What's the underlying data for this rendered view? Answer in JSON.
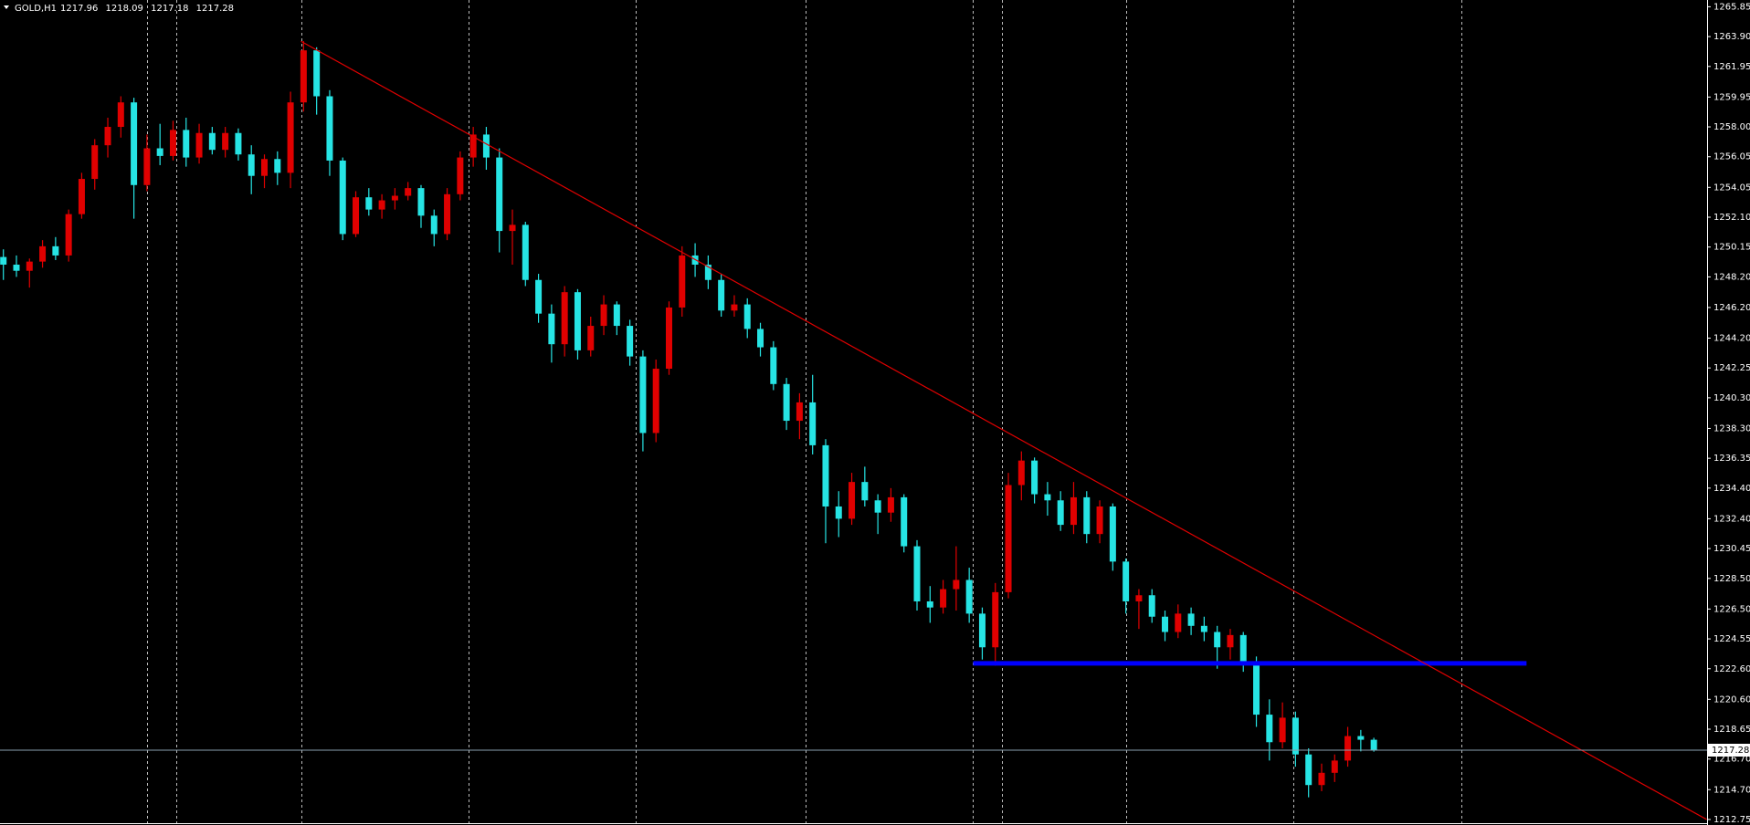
{
  "chart_data": {
    "type": "candlestick",
    "symbol": "GOLD,H1",
    "bull_color": "#e00000",
    "bear_color": "#26e4e4",
    "ylim": [
      1212.39,
      1266.29
    ],
    "yticks": [
      1265.85,
      {
        "value": 1263.9,
        "label": "1263.90"
      },
      1261.95,
      1259.95,
      {
        "value": 1258,
        "label": "1258.00"
      },
      1256.05,
      1254.05,
      {
        "value": 1252.1,
        "label": "1252.10"
      },
      1250.15,
      {
        "value": 1248.2,
        "label": "1248.20"
      },
      {
        "value": 1246.2,
        "label": "1246.20"
      },
      {
        "value": 1244.2,
        "label": "1244.20"
      },
      1242.25,
      {
        "value": 1240.3,
        "label": "1240.30"
      },
      {
        "value": 1238.3,
        "label": "1238.30"
      },
      1236.35,
      {
        "value": 1234.4,
        "label": "1234.40"
      },
      {
        "value": 1232.4,
        "label": "1232.40"
      },
      1230.45,
      {
        "value": 1228.5,
        "label": "1228.50"
      },
      {
        "value": 1226.5,
        "label": "1226.50"
      },
      1224.55,
      {
        "value": 1222.6,
        "label": "1222.60"
      },
      {
        "value": 1220.6,
        "label": "1220.60"
      },
      1218.65,
      {
        "value": 1216.7,
        "label": "1216.70"
      },
      {
        "value": 1214.7,
        "label": "1214.70"
      },
      1212.75
    ],
    "candles": [
      [
        1249.5,
        1250.0,
        1248.0,
        1249.0
      ],
      [
        1249.0,
        1249.6,
        1248.2,
        1248.6
      ],
      [
        1248.6,
        1249.4,
        1247.5,
        1249.2
      ],
      [
        1249.2,
        1250.6,
        1248.8,
        1250.2
      ],
      [
        1250.2,
        1250.8,
        1249.3,
        1249.6
      ],
      [
        1249.6,
        1252.6,
        1249.2,
        1252.3
      ],
      [
        1252.3,
        1255.0,
        1252.0,
        1254.6
      ],
      [
        1254.6,
        1257.2,
        1253.9,
        1256.8
      ],
      [
        1256.8,
        1258.6,
        1256.0,
        1258.0
      ],
      [
        1258.0,
        1260.0,
        1257.3,
        1259.6
      ],
      [
        1259.6,
        1259.9,
        1252.0,
        1254.2
      ],
      [
        1254.2,
        1257.5,
        1253.8,
        1256.6
      ],
      [
        1256.6,
        1258.2,
        1255.5,
        1256.1
      ],
      [
        1256.1,
        1258.4,
        1255.8,
        1257.8
      ],
      [
        1257.8,
        1258.6,
        1255.4,
        1256.0
      ],
      [
        1256.0,
        1258.2,
        1255.6,
        1257.6
      ],
      [
        1257.6,
        1258.0,
        1256.2,
        1256.5
      ],
      [
        1256.5,
        1258.0,
        1256.0,
        1257.6
      ],
      [
        1257.6,
        1257.9,
        1255.8,
        1256.2
      ],
      [
        1256.2,
        1256.8,
        1253.6,
        1254.8
      ],
      [
        1254.8,
        1256.2,
        1254.0,
        1255.9
      ],
      [
        1255.9,
        1256.4,
        1254.2,
        1255.0
      ],
      [
        1255.0,
        1260.3,
        1254.0,
        1259.6
      ],
      [
        1259.6,
        1263.6,
        1259.0,
        1263.0
      ],
      [
        1263.0,
        1263.2,
        1258.8,
        1260.0
      ],
      [
        1260.0,
        1260.4,
        1254.8,
        1255.8
      ],
      [
        1255.8,
        1256.0,
        1250.6,
        1251.0
      ],
      [
        1251.0,
        1253.8,
        1250.8,
        1253.4
      ],
      [
        1253.4,
        1254.0,
        1252.2,
        1252.6
      ],
      [
        1252.6,
        1253.6,
        1252.0,
        1253.2
      ],
      [
        1253.2,
        1254.0,
        1252.6,
        1253.5
      ],
      [
        1253.5,
        1254.4,
        1253.2,
        1254.0
      ],
      [
        1254.0,
        1254.2,
        1251.4,
        1252.2
      ],
      [
        1252.2,
        1252.6,
        1250.2,
        1251.0
      ],
      [
        1251.0,
        1254.0,
        1250.6,
        1253.6
      ],
      [
        1253.6,
        1256.4,
        1253.2,
        1256.0
      ],
      [
        1256.0,
        1258.0,
        1255.4,
        1257.5
      ],
      [
        1257.5,
        1258.0,
        1255.2,
        1256.0
      ],
      [
        1256.0,
        1256.6,
        1249.8,
        1251.2
      ],
      [
        1251.2,
        1252.6,
        1249.0,
        1251.6
      ],
      [
        1251.6,
        1251.8,
        1247.6,
        1248.0
      ],
      [
        1248.0,
        1248.4,
        1245.2,
        1245.8
      ],
      [
        1245.8,
        1246.4,
        1242.6,
        1243.8
      ],
      [
        1243.8,
        1247.6,
        1243.0,
        1247.2
      ],
      [
        1247.2,
        1247.4,
        1242.8,
        1243.4
      ],
      [
        1243.4,
        1245.6,
        1243.0,
        1245.0
      ],
      [
        1245.0,
        1247.0,
        1244.4,
        1246.4
      ],
      [
        1246.4,
        1246.6,
        1244.4,
        1245.0
      ],
      [
        1245.0,
        1245.4,
        1242.4,
        1243.0
      ],
      [
        1243.0,
        1243.4,
        1236.8,
        1238.0
      ],
      [
        1238.0,
        1242.8,
        1237.4,
        1242.2
      ],
      [
        1242.2,
        1246.6,
        1241.8,
        1246.2
      ],
      [
        1246.2,
        1250.2,
        1245.6,
        1249.6
      ],
      [
        1249.6,
        1250.4,
        1248.2,
        1249.0
      ],
      [
        1249.0,
        1249.6,
        1247.4,
        1248.0
      ],
      [
        1248.0,
        1248.4,
        1245.6,
        1246.0
      ],
      [
        1246.0,
        1247.0,
        1245.6,
        1246.4
      ],
      [
        1246.4,
        1246.8,
        1244.2,
        1244.8
      ],
      [
        1244.8,
        1245.2,
        1243.0,
        1243.6
      ],
      [
        1243.6,
        1244.0,
        1240.8,
        1241.2
      ],
      [
        1241.2,
        1241.6,
        1238.2,
        1238.8
      ],
      [
        1238.8,
        1240.6,
        1237.6,
        1240.0
      ],
      [
        1240.0,
        1241.8,
        1236.6,
        1237.2
      ],
      [
        1237.2,
        1237.6,
        1230.8,
        1233.2
      ],
      [
        1233.2,
        1234.2,
        1231.2,
        1232.4
      ],
      [
        1232.4,
        1235.4,
        1232.0,
        1234.8
      ],
      [
        1234.8,
        1235.8,
        1233.2,
        1233.6
      ],
      [
        1233.6,
        1234.0,
        1231.4,
        1232.8
      ],
      [
        1232.8,
        1234.4,
        1232.2,
        1233.8
      ],
      [
        1233.8,
        1234.0,
        1230.2,
        1230.6
      ],
      [
        1230.6,
        1231.0,
        1226.4,
        1227.0
      ],
      [
        1227.0,
        1228.0,
        1225.6,
        1226.6
      ],
      [
        1226.6,
        1228.4,
        1226.2,
        1227.8
      ],
      [
        1227.8,
        1230.6,
        1226.4,
        1228.4
      ],
      [
        1228.4,
        1229.2,
        1225.6,
        1226.2
      ],
      [
        1226.2,
        1226.6,
        1223.2,
        1224.0
      ],
      [
        1224.0,
        1228.2,
        1222.8,
        1227.6
      ],
      [
        1227.6,
        1235.4,
        1227.2,
        1234.6
      ],
      [
        1234.6,
        1236.8,
        1233.6,
        1236.2
      ],
      [
        1236.2,
        1236.4,
        1233.4,
        1234.0
      ],
      [
        1234.0,
        1234.8,
        1232.6,
        1233.6
      ],
      [
        1233.6,
        1234.2,
        1231.6,
        1232.0
      ],
      [
        1232.0,
        1234.8,
        1231.4,
        1233.8
      ],
      [
        1233.8,
        1234.2,
        1230.8,
        1231.4
      ],
      [
        1231.4,
        1233.6,
        1230.8,
        1233.2
      ],
      [
        1233.2,
        1233.4,
        1229.0,
        1229.6
      ],
      [
        1229.6,
        1229.8,
        1226.2,
        1227.0
      ],
      [
        1227.0,
        1227.8,
        1225.2,
        1227.4
      ],
      [
        1227.4,
        1227.8,
        1225.6,
        1226.0
      ],
      [
        1226.0,
        1226.4,
        1224.4,
        1225.0
      ],
      [
        1225.0,
        1226.8,
        1224.6,
        1226.2
      ],
      [
        1226.2,
        1226.6,
        1224.8,
        1225.4
      ],
      [
        1225.4,
        1226.0,
        1224.4,
        1225.0
      ],
      [
        1225.0,
        1225.4,
        1222.6,
        1224.0
      ],
      [
        1224.0,
        1225.2,
        1223.2,
        1224.8
      ],
      [
        1224.8,
        1225.0,
        1222.4,
        1223.0
      ],
      [
        1223.0,
        1223.4,
        1218.8,
        1219.6
      ],
      [
        1219.6,
        1220.6,
        1216.6,
        1217.8
      ],
      [
        1217.8,
        1220.4,
        1217.4,
        1219.4
      ],
      [
        1219.4,
        1219.8,
        1216.2,
        1217.0
      ],
      [
        1217.0,
        1217.4,
        1214.2,
        1215.0
      ],
      [
        1215.0,
        1216.4,
        1214.6,
        1215.8
      ],
      [
        1215.8,
        1217.0,
        1215.2,
        1216.6
      ],
      [
        1216.6,
        1218.8,
        1216.2,
        1218.2
      ],
      [
        1218.2,
        1218.6,
        1217.2,
        1217.96
      ],
      [
        1217.96,
        1218.09,
        1217.18,
        1217.28
      ]
    ],
    "trendline": {
      "color": "#e00000",
      "x": [
        22.8,
        130.5
      ],
      "y": [
        1263.59,
        1212.75
      ]
    },
    "level_line": {
      "color": "#0000ff",
      "x": [
        74.3,
        116.7
      ],
      "y": 1222.95
    }
  }
}
